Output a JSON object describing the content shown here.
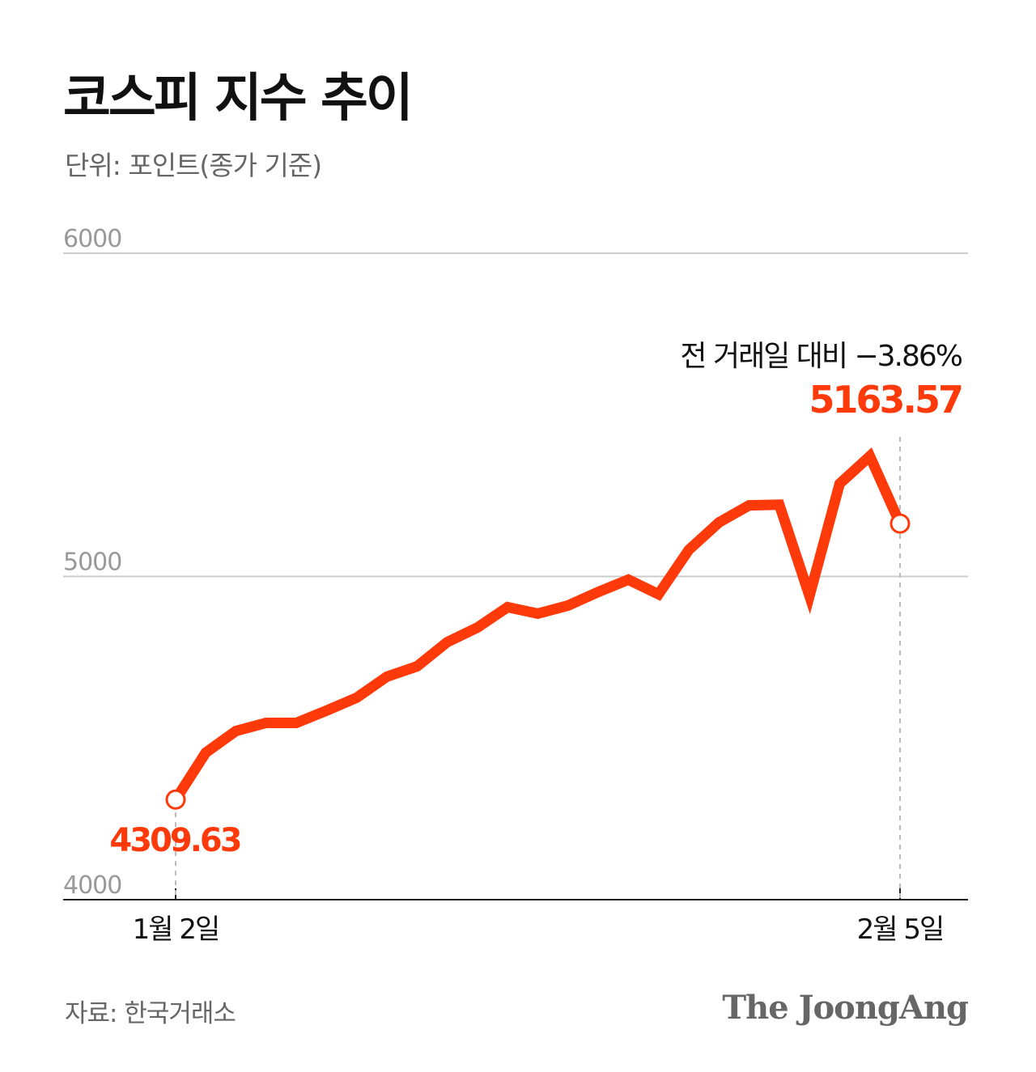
{
  "title": "코스피 지수 추이",
  "subtitle": "단위: 포인트(종가 기준)",
  "source": "자료: 한국거래소",
  "logo": "The JoongAng",
  "colors": {
    "line": "#FF3A0A",
    "grid": "#cccccc",
    "axis": "#222222",
    "tick_text": "#999999"
  },
  "chart_data": {
    "type": "line",
    "title": "코스피 지수 추이",
    "ylabel": "단위: 포인트(종가 기준)",
    "ylim": [
      4000,
      6000
    ],
    "yticks": [
      "4000",
      "5000",
      "6000"
    ],
    "xticks": [
      {
        "index": 0,
        "label": "1월 2일"
      },
      {
        "index": 24,
        "label": "2월 5일"
      }
    ],
    "grid": true,
    "series": [
      {
        "values": [
          4309.63,
          4455,
          4522,
          4547,
          4547,
          4585,
          4625,
          4690,
          4722,
          4797,
          4842,
          4905,
          4885,
          4910,
          4952,
          4990,
          4945,
          5082,
          5167,
          5220,
          5222,
          4940,
          5287,
          5372,
          5163.57
        ]
      }
    ],
    "annotations": {
      "start_label": "4309.63",
      "end_label": "5163.57",
      "change_label": "전 거래일 대비 −3.86%"
    }
  }
}
